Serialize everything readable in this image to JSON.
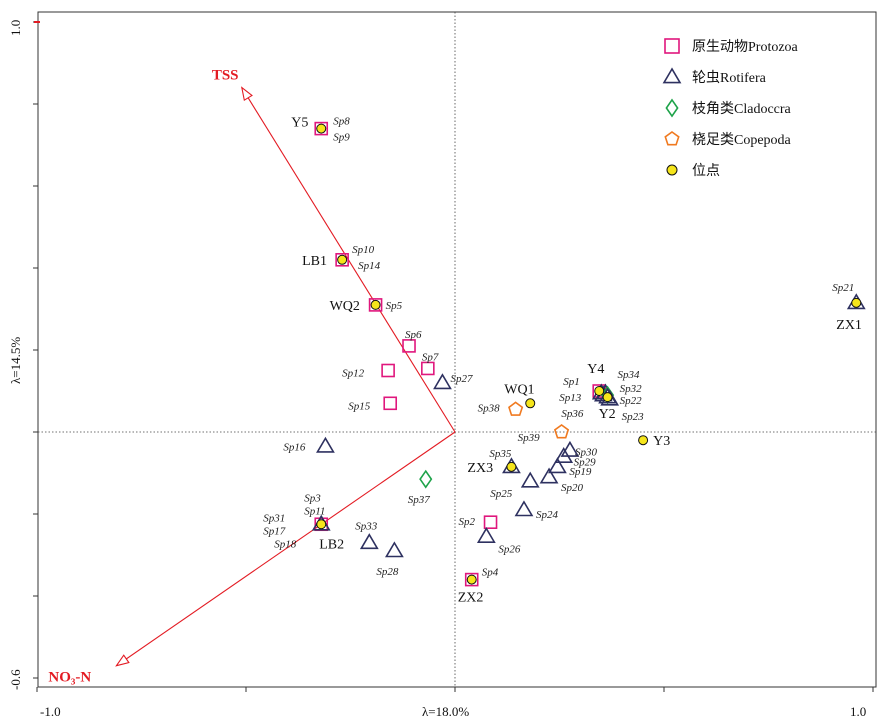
{
  "chart_data": {
    "type": "scatter",
    "title": "",
    "xlabel": "λ=18.0%",
    "ylabel": "λ=14.5%",
    "xlim": [
      -1.0,
      1.0
    ],
    "ylim": [
      -0.6,
      1.0
    ],
    "x_tick_labels": [
      "-1.0",
      "1.0"
    ],
    "y_tick_labels": [
      "-0.6",
      "1.0"
    ],
    "legend": [
      {
        "key": "protozoa",
        "label": "原生动物Protozoa",
        "shape": "square",
        "color": "#e0177d"
      },
      {
        "key": "rotifera",
        "label": "轮虫Rotifera",
        "shape": "triangle",
        "color": "#2e3160"
      },
      {
        "key": "cladocera",
        "label": "枝角类Cladoccra",
        "shape": "diamond",
        "color": "#1ea34a"
      },
      {
        "key": "copepoda",
        "label": "桡足类Copepoda",
        "shape": "pentagon",
        "color": "#f07a20"
      },
      {
        "key": "site",
        "label": "位点",
        "shape": "circle",
        "color": "#f5e51b"
      }
    ],
    "env_vectors": [
      {
        "label": "TSS",
        "x": -0.51,
        "y": 0.84
      },
      {
        "label": "NO₃-N",
        "x": -0.81,
        "y": -0.57
      }
    ],
    "sites": [
      {
        "label": "Y5",
        "x": -0.32,
        "y": 0.74
      },
      {
        "label": "LB1",
        "x": -0.27,
        "y": 0.42
      },
      {
        "label": "WQ2",
        "x": -0.19,
        "y": 0.31
      },
      {
        "label": "WQ1",
        "x": 0.18,
        "y": 0.07
      },
      {
        "label": "Y4",
        "x": 0.345,
        "y": 0.1
      },
      {
        "label": "Y2",
        "x": 0.365,
        "y": 0.085
      },
      {
        "label": "Y3",
        "x": 0.45,
        "y": -0.02
      },
      {
        "label": "ZX1",
        "x": 0.96,
        "y": 0.315
      },
      {
        "label": "ZX3",
        "x": 0.135,
        "y": -0.085
      },
      {
        "label": "LB2",
        "x": -0.32,
        "y": -0.225
      },
      {
        "label": "ZX2",
        "x": 0.04,
        "y": -0.36
      }
    ],
    "species": [
      {
        "label": "Sp8",
        "group": "protozoa",
        "x": -0.32,
        "y": 0.74
      },
      {
        "label": "Sp9",
        "group": "protozoa",
        "x": -0.32,
        "y": 0.74
      },
      {
        "label": "Sp10",
        "group": "protozoa",
        "x": -0.27,
        "y": 0.42
      },
      {
        "label": "Sp14",
        "group": "protozoa",
        "x": -0.27,
        "y": 0.42
      },
      {
        "label": "Sp5",
        "group": "protozoa",
        "x": -0.19,
        "y": 0.31
      },
      {
        "label": "Sp6",
        "group": "protozoa",
        "x": -0.11,
        "y": 0.21
      },
      {
        "label": "Sp7",
        "group": "protozoa",
        "x": -0.065,
        "y": 0.155
      },
      {
        "label": "Sp12",
        "group": "protozoa",
        "x": -0.16,
        "y": 0.15
      },
      {
        "label": "Sp15",
        "group": "protozoa",
        "x": -0.155,
        "y": 0.07
      },
      {
        "label": "Sp27",
        "group": "rotifera",
        "x": -0.03,
        "y": 0.12
      },
      {
        "label": "Sp16",
        "group": "rotifera",
        "x": -0.31,
        "y": -0.035
      },
      {
        "label": "Sp37",
        "group": "cladocera",
        "x": -0.07,
        "y": -0.115
      },
      {
        "label": "Sp3",
        "group": "protozoa",
        "x": -0.32,
        "y": -0.225
      },
      {
        "label": "Sp11",
        "group": "rotifera",
        "x": -0.32,
        "y": -0.225
      },
      {
        "label": "Sp31",
        "group": "protozoa",
        "x": -0.32,
        "y": -0.225
      },
      {
        "label": "Sp17",
        "group": "rotifera",
        "x": -0.32,
        "y": -0.225
      },
      {
        "label": "Sp18",
        "group": "protozoa",
        "x": -0.32,
        "y": -0.225
      },
      {
        "label": "Sp33",
        "group": "rotifera",
        "x": -0.205,
        "y": -0.27
      },
      {
        "label": "Sp28",
        "group": "rotifera",
        "x": -0.145,
        "y": -0.29
      },
      {
        "label": "Sp2",
        "group": "protozoa",
        "x": 0.085,
        "y": -0.22
      },
      {
        "label": "Sp26",
        "group": "rotifera",
        "x": 0.075,
        "y": -0.255
      },
      {
        "label": "Sp4",
        "group": "protozoa",
        "x": 0.04,
        "y": -0.36
      },
      {
        "label": "Sp38",
        "group": "copepoda",
        "x": 0.145,
        "y": 0.055
      },
      {
        "label": "Sp39",
        "group": "copepoda",
        "x": 0.255,
        "y": 0.0
      },
      {
        "label": "Sp35",
        "group": "rotifera",
        "x": 0.135,
        "y": -0.085
      },
      {
        "label": "Sp25",
        "group": "rotifera",
        "x": 0.18,
        "y": -0.12
      },
      {
        "label": "Sp24",
        "group": "rotifera",
        "x": 0.165,
        "y": -0.19
      },
      {
        "label": "Sp20",
        "group": "rotifera",
        "x": 0.225,
        "y": -0.11
      },
      {
        "label": "Sp19",
        "group": "rotifera",
        "x": 0.245,
        "y": -0.085
      },
      {
        "label": "Sp29",
        "group": "rotifera",
        "x": 0.26,
        "y": -0.06
      },
      {
        "label": "Sp30",
        "group": "rotifera",
        "x": 0.275,
        "y": -0.045
      },
      {
        "label": "Sp1",
        "group": "protozoa",
        "x": 0.345,
        "y": 0.1
      },
      {
        "label": "Sp13",
        "group": "rotifera",
        "x": 0.35,
        "y": 0.095
      },
      {
        "label": "Sp36",
        "group": "rotifera",
        "x": 0.355,
        "y": 0.09
      },
      {
        "label": "Sp34",
        "group": "rotifera",
        "x": 0.36,
        "y": 0.095
      },
      {
        "label": "Sp32",
        "group": "cladocera",
        "x": 0.365,
        "y": 0.09
      },
      {
        "label": "Sp22",
        "group": "rotifera",
        "x": 0.365,
        "y": 0.085
      },
      {
        "label": "Sp23",
        "group": "rotifera",
        "x": 0.37,
        "y": 0.08
      },
      {
        "label": "Sp21",
        "group": "rotifera",
        "x": 0.96,
        "y": 0.315
      }
    ]
  }
}
